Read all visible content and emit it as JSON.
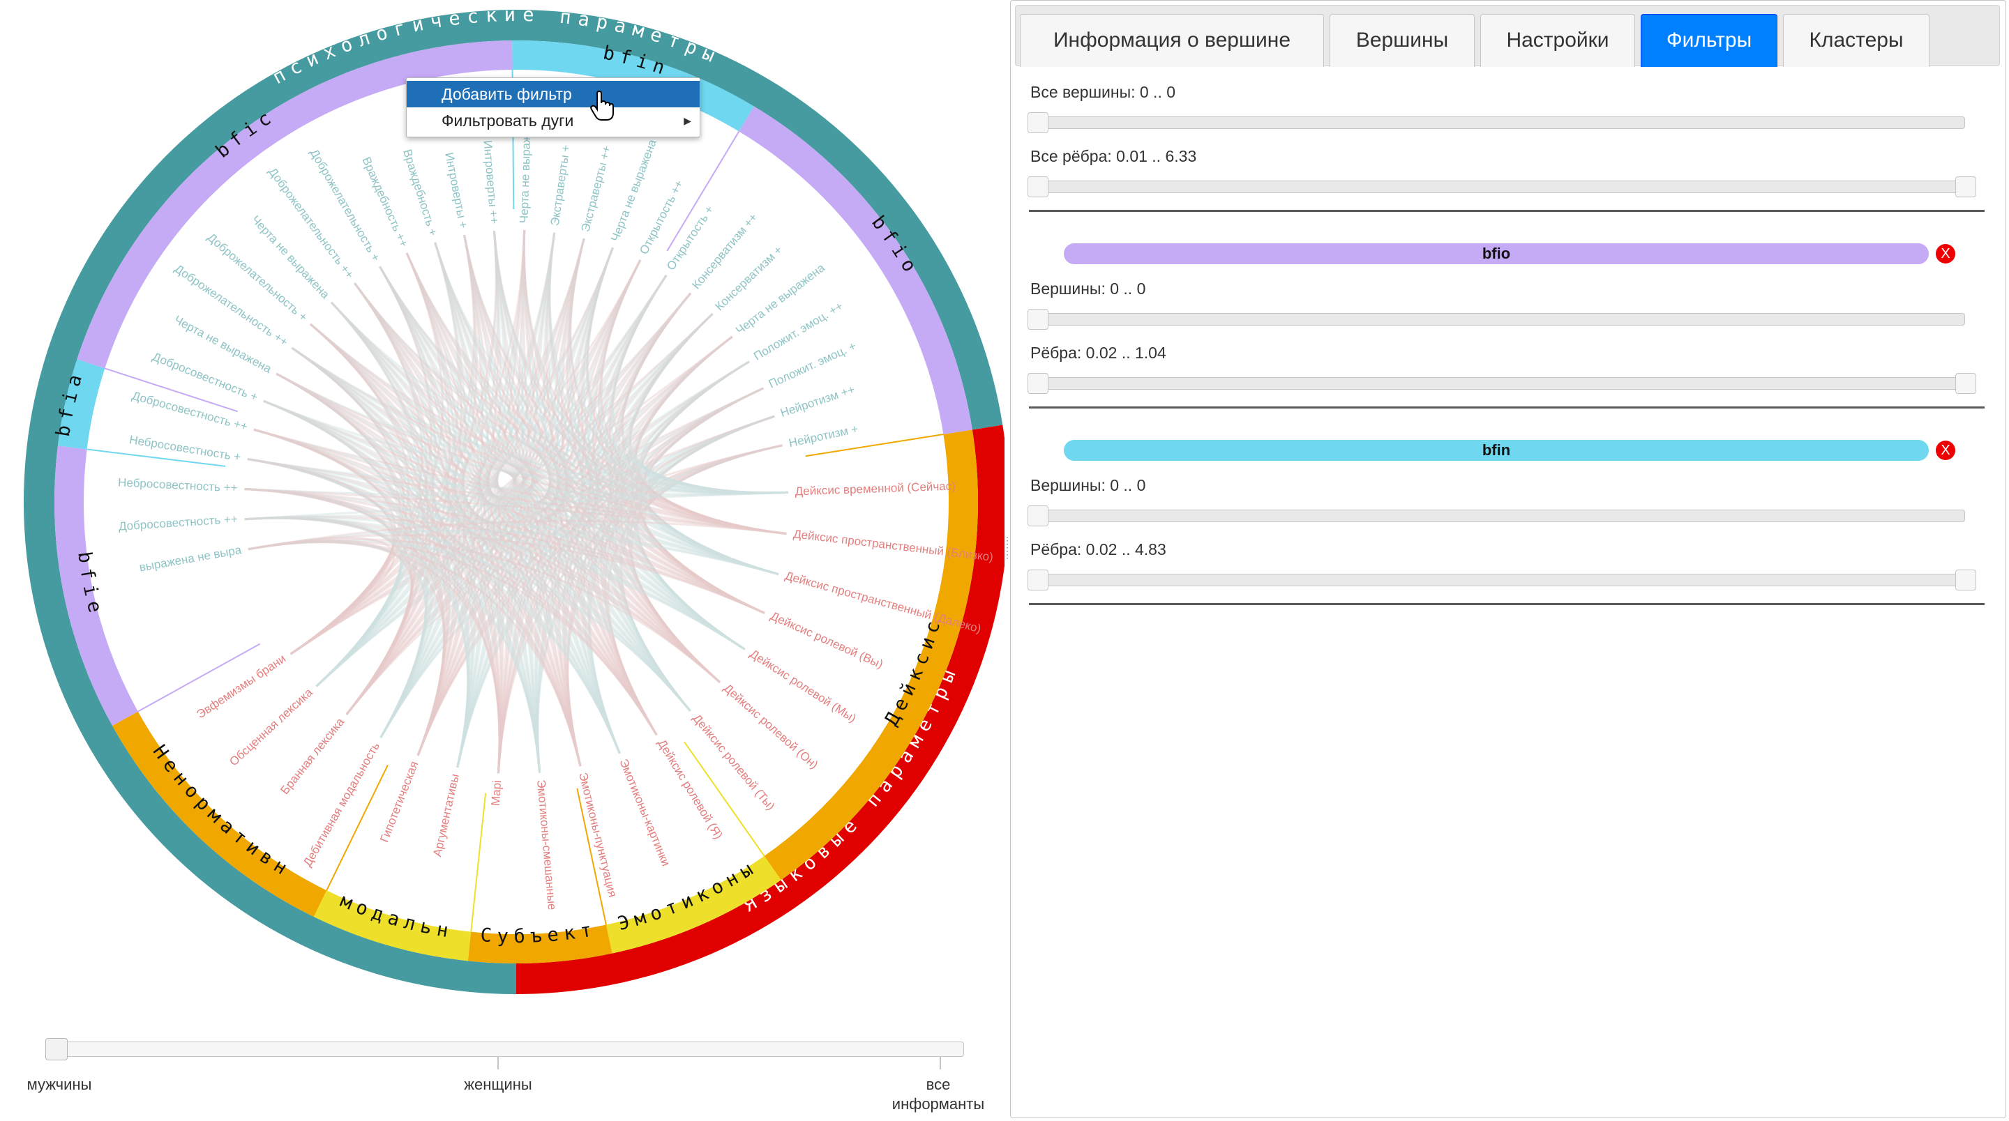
{
  "chart": {
    "ring_outer": [
      {
        "label": "психологические параметры",
        "from": -180,
        "to": 81,
        "color": "#459b9f"
      },
      {
        "label": "Языковые параметры",
        "from": 81,
        "to": 180,
        "color": "#e00000"
      }
    ],
    "ring_inner": [
      {
        "label": "bfic",
        "from": -72,
        "to": -0.5,
        "color": "#c5aaf6"
      },
      {
        "label": "bfin",
        "from": -0.5,
        "to": 31,
        "color": "#6fd8f0"
      },
      {
        "label": "bfio",
        "from": 31,
        "to": 81,
        "color": "#c5aaf6"
      },
      {
        "label": "Дейксис",
        "from": 81,
        "to": 145,
        "color": "#f0a800"
      },
      {
        "label": "Эмотиконы",
        "from": 145,
        "to": 168,
        "color": "#eee02a"
      },
      {
        "label": "Субъект",
        "from": 168,
        "to": 186,
        "color": "#f0a800"
      },
      {
        "label": "модальн",
        "from": 186,
        "to": 206,
        "color": "#eee02a"
      },
      {
        "label": "Ненормативн",
        "from": 206,
        "to": 241,
        "color": "#f0a800"
      },
      {
        "label": "bfie",
        "from": 241,
        "to": 277,
        "color": "#c5aaf6"
      },
      {
        "label": "bfia",
        "from": 277,
        "to": 288,
        "color": "#6fd8f0"
      }
    ],
    "nodes_psych": [
      "Нейротизм +",
      "Нейротизм ++",
      "Положит. эмоц. +",
      "Положит. эмоц. ++",
      "Черта не выражена",
      "Консерватизм +",
      "Консерватизм ++",
      "Открытость +",
      "Открытость ++",
      "Черта не выражена",
      "Экстраверты ++",
      "Экстраверты +",
      "Черта не выражена",
      "Интроверты ++",
      "Интроверты +",
      "Враждебность +",
      "Враждебность ++",
      "Доброжелательность +",
      "Доброжелательность ++",
      "Черта не выражена",
      "Доброжелательность +",
      "Доброжелательность ++",
      "Черта не выражена",
      "Добросовестность +",
      "Добросовестность ++",
      "Небросовестность +",
      "Небросовестность ++",
      "Добросовестность ++",
      "выражена не выра"
    ],
    "nodes_lang": [
      "Дейксис временной (Сейчас)",
      "Дейксис пространственный (Близко)",
      "Дейксис пространственный (Далеко)",
      "Дейксис ролевой (Вы)",
      "Дейксис ролевой (Мы)",
      "Дейксис ролевой (Он)",
      "Дейксис ролевой (Ты)",
      "Дейксис ролевой (Я)",
      "Эмотиконы-картинки",
      "Эмотиконы-пунктуация",
      "Эмотиконы-смешанные",
      "Мapi",
      "Аргументативы",
      "Гипотетическая",
      "Дебитивная модальность",
      "Бранная лексика",
      "Обсценная лексика",
      "Эвфемизмы брани"
    ]
  },
  "context_menu": {
    "items": [
      {
        "label": "Добавить фильтр"
      },
      {
        "label": "Фильтровать дуги"
      }
    ]
  },
  "gender_slider": {
    "labels": [
      "мужчины",
      "женщины",
      "все информанты"
    ],
    "value": 0
  },
  "tabs": [
    {
      "label": "Информация о вершине"
    },
    {
      "label": "Вершины"
    },
    {
      "label": "Настройки"
    },
    {
      "label": "Фильтры",
      "active": true
    },
    {
      "label": "Кластеры"
    }
  ],
  "filters": {
    "all_vertices_label": "Все вершины: 0 .. 0",
    "all_edges_label": "Все рёбра: 0.01 .. 6.33",
    "groups": [
      {
        "name": "bfio",
        "color": "#c5aaf6",
        "vertices_label": "Вершины: 0 .. 0",
        "edges_label": "Рёбра: 0.02 .. 1.04",
        "remove": "X"
      },
      {
        "name": "bfin",
        "color": "#6fd8f0",
        "vertices_label": "Вершины: 0 .. 0",
        "edges_label": "Рёбра: 0.02 .. 4.83",
        "remove": "X"
      }
    ]
  }
}
